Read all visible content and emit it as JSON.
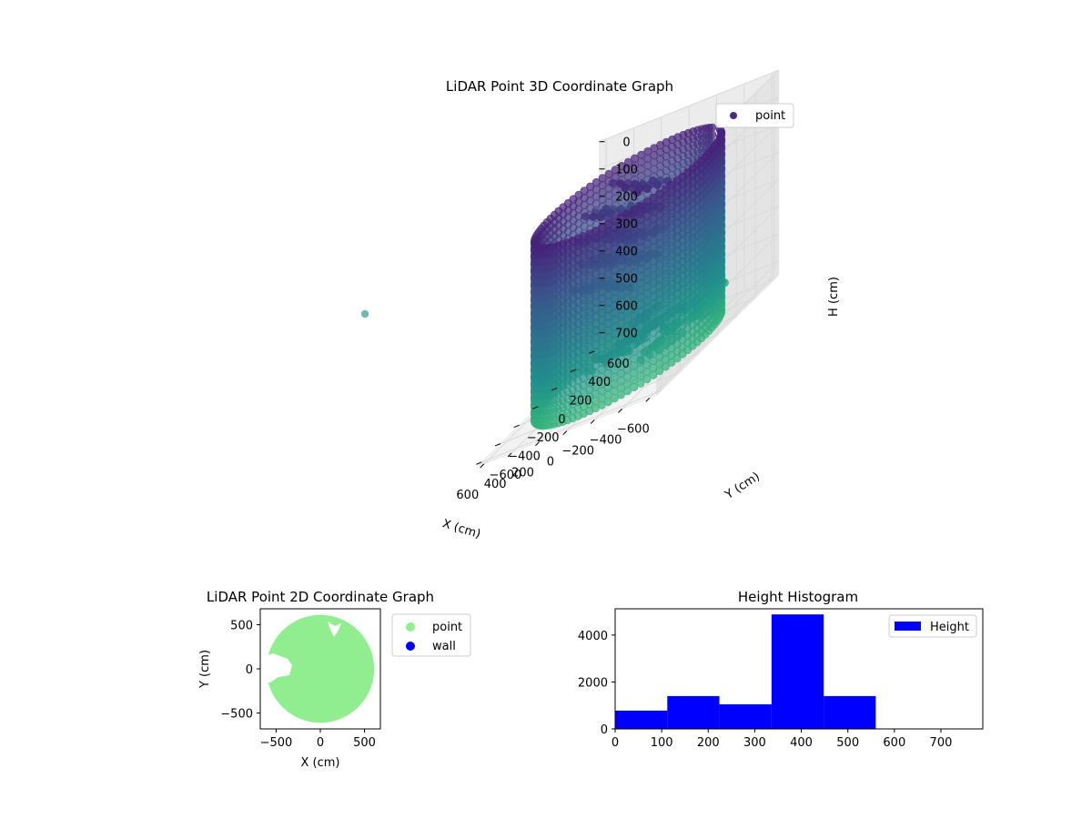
{
  "colors": {
    "point_3d_legend": "#472d7b",
    "viridis_dark": "#46237a",
    "viridis_mid": "#2f7f8e",
    "viridis_light": "#3bb59a",
    "scatter2d_point": "#90ee90",
    "scatter2d_wall": "#0000ff",
    "histogram": "#0000ff",
    "pane": "#f2f2f2",
    "grid": "#d9d9d9"
  },
  "chart_data": [
    {
      "type": "scatter",
      "projection": "3d",
      "title": "LiDAR Point 3D Coordinate Graph",
      "xlabel": "X (cm)",
      "ylabel": "Y (cm)",
      "zlabel": "H (cm)",
      "x_ticks": [
        "−600",
        "−400",
        "−200",
        "0",
        "200",
        "400",
        "600"
      ],
      "y_ticks": [
        "−600",
        "−400",
        "−200",
        "0",
        "200",
        "400",
        "600"
      ],
      "z_ticks": [
        "0",
        "100",
        "200",
        "300",
        "400",
        "500",
        "600",
        "700"
      ],
      "xlim": [
        -600,
        600
      ],
      "ylim": [
        -600,
        600
      ],
      "zlim": [
        0,
        750
      ],
      "z_inverted": true,
      "legend": {
        "entries": [
          "point"
        ],
        "position": "upper right"
      },
      "wall": {
        "center": [
          0,
          0
        ],
        "radius": 560,
        "height_range": [
          80,
          750
        ]
      },
      "interior_cluster": {
        "x_range": [
          -100,
          400
        ],
        "y_range": [
          -50,
          350
        ],
        "height_range": [
          100,
          450
        ]
      },
      "outlier": {
        "x": -650,
        "y": -100,
        "h": 300
      }
    },
    {
      "type": "scatter",
      "title": "LiDAR Point 2D Coordinate Graph",
      "xlabel": "X (cm)",
      "ylabel": "Y (cm)",
      "x_ticks": [
        "−500",
        "0",
        "500"
      ],
      "y_ticks": [
        "500",
        "0",
        "−500"
      ],
      "xlim": [
        -680,
        680
      ],
      "ylim": [
        -680,
        680
      ],
      "series": [
        {
          "name": "point",
          "shape": "disc",
          "center": [
            0,
            0
          ],
          "radius": 610
        },
        {
          "name": "wall"
        }
      ],
      "legend": {
        "entries": [
          "point",
          "wall"
        ],
        "position": "outside right"
      }
    },
    {
      "type": "bar",
      "title": "Height Histogram",
      "xlabel": "",
      "ylabel": "",
      "bin_edges": [
        0,
        112,
        224,
        336,
        448,
        560
      ],
      "values": [
        780,
        1400,
        1050,
        4880,
        1400
      ],
      "x_ticks": [
        "0",
        "100",
        "200",
        "300",
        "400",
        "500",
        "600",
        "700"
      ],
      "y_ticks": [
        "0",
        "2000",
        "4000"
      ],
      "xlim": [
        0,
        790
      ],
      "ylim": [
        0,
        5120
      ],
      "legend": {
        "entries": [
          "Height"
        ],
        "position": "upper right"
      }
    }
  ]
}
